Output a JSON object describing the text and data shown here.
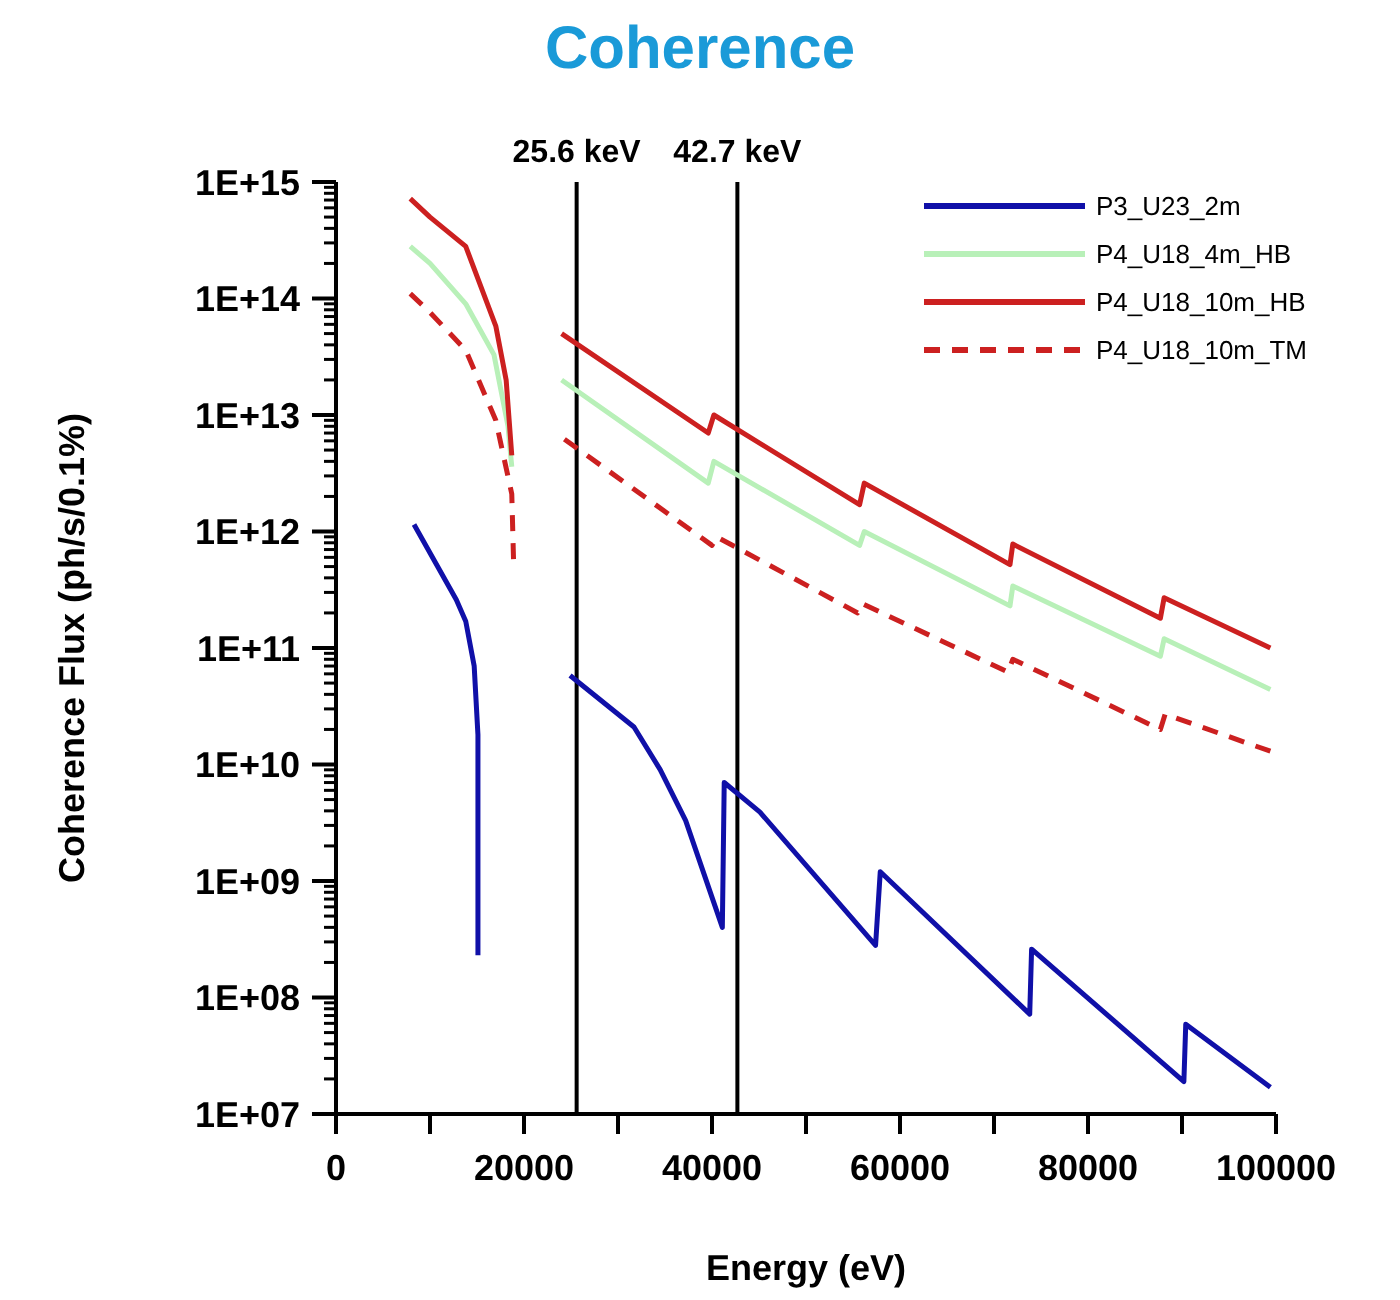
{
  "chart_data": {
    "type": "line",
    "title": "Coherence",
    "xlabel": "Energy (eV)",
    "ylabel": "Coherence Flux (ph/s/0.1%)",
    "log": "y",
    "grid": false,
    "legend": "top right",
    "xlim": [
      0,
      100000
    ],
    "xticks": [
      0,
      {
        "value": 10000,
        "label": null
      },
      20000,
      {
        "value": 30000,
        "label": null
      },
      40000,
      {
        "value": 50000,
        "label": null
      },
      60000,
      {
        "value": 70000,
        "label": null
      },
      80000,
      {
        "value": 90000,
        "label": null
      },
      100000
    ],
    "ylim": [
      10000000.0,
      1000000000000000.0
    ],
    "yticks": [
      {
        "value": 10000000.0,
        "label": "1E+07"
      },
      {
        "value": 100000000.0,
        "label": "1E+08"
      },
      {
        "value": 1000000000.0,
        "label": "1E+09"
      },
      {
        "value": 10000000000.0,
        "label": "1E+10"
      },
      {
        "value": 100000000000.0,
        "label": "1E+11"
      },
      {
        "value": 1000000000000.0,
        "label": "1E+12"
      },
      {
        "value": 10000000000000.0,
        "label": "1E+13"
      },
      {
        "value": 100000000000000.0,
        "label": "1E+14"
      },
      {
        "value": 1000000000000000.0,
        "label": "1E+15"
      }
    ],
    "ref_lines": [
      {
        "axis": "x",
        "value": 25600,
        "label": "25.6 keV",
        "color": "#000000"
      },
      {
        "axis": "x",
        "value": 42700,
        "label": "42.7 keV",
        "color": "#000000"
      }
    ],
    "series": [
      {
        "name": "P3_U23_2m",
        "color": "#1010a8",
        "line_style": "solid",
        "x": [
          8300,
          12800,
          13800,
          14700,
          15100,
          15100,
          20000,
          24900,
          31700,
          34500,
          37200,
          41100,
          41300,
          45100,
          57400,
          57900,
          73800,
          74000,
          90200,
          90400,
          99400
        ],
        "values": [
          1150000000000.0,
          260000000000.0,
          170000000000.0,
          70000000000.0,
          18000000000.0,
          230000000.0,
          null,
          58000000000.0,
          21000000000.0,
          9000000000.0,
          3300000000.0,
          400000000.0,
          7000000000.0,
          3900000000.0,
          280000000.0,
          1200000000.0,
          72000000.0,
          260000000.0,
          19000000.0,
          59000000.0,
          17000000.0
        ]
      },
      {
        "name": "P4_U18_4m_HB",
        "color": "#b8f0b8",
        "line_style": "solid",
        "x": [
          7900,
          10000,
          13800,
          16800,
          18300,
          18700,
          21000,
          24000,
          39600,
          40200,
          55700,
          56200,
          71700,
          72000,
          87700,
          88100,
          99400
        ],
        "values": [
          280000000000000.0,
          200000000000000.0,
          90000000000000.0,
          33000000000000.0,
          8000000000000.0,
          3600000000000.0,
          null,
          20000000000000.0,
          2600000000000.0,
          4000000000000.0,
          760000000000.0,
          1000000000000.0,
          230000000000.0,
          340000000000.0,
          85000000000.0,
          120000000000.0,
          44000000000.0
        ]
      },
      {
        "name": "P4_U18_10m_HB",
        "color": "#cc2020",
        "line_style": "solid",
        "x": [
          7900,
          10000,
          13800,
          17000,
          18100,
          18700,
          21000,
          24000,
          39600,
          40200,
          55700,
          56200,
          71700,
          72000,
          87700,
          88100,
          99400
        ],
        "values": [
          720000000000000.0,
          500000000000000.0,
          280000000000000.0,
          58000000000000.0,
          20000000000000.0,
          4500000000000.0,
          null,
          50000000000000.0,
          7000000000000.0,
          10000000000000.0,
          1700000000000.0,
          2600000000000.0,
          520000000000.0,
          780000000000.0,
          180000000000.0,
          270000000000.0,
          100000000000.0
        ]
      },
      {
        "name": "P4_U18_10m_TM",
        "color": "#cc2020",
        "line_style": "dashed",
        "x": [
          7900,
          10000,
          13800,
          17000,
          18700,
          18900,
          21000,
          24300,
          40000,
          40500,
          55500,
          56000,
          71500,
          72000,
          87700,
          88200,
          99400
        ],
        "values": [
          110000000000000.0,
          76000000000000.0,
          36000000000000.0,
          9000000000000.0,
          2100000000000.0,
          520000000000.0,
          null,
          6200000000000.0,
          760000000000.0,
          900000000000.0,
          200000000000.0,
          240000000000.0,
          62000000000.0,
          80000000000.0,
          20000000000.0,
          27000000000.0,
          13000000000.0
        ]
      }
    ]
  }
}
